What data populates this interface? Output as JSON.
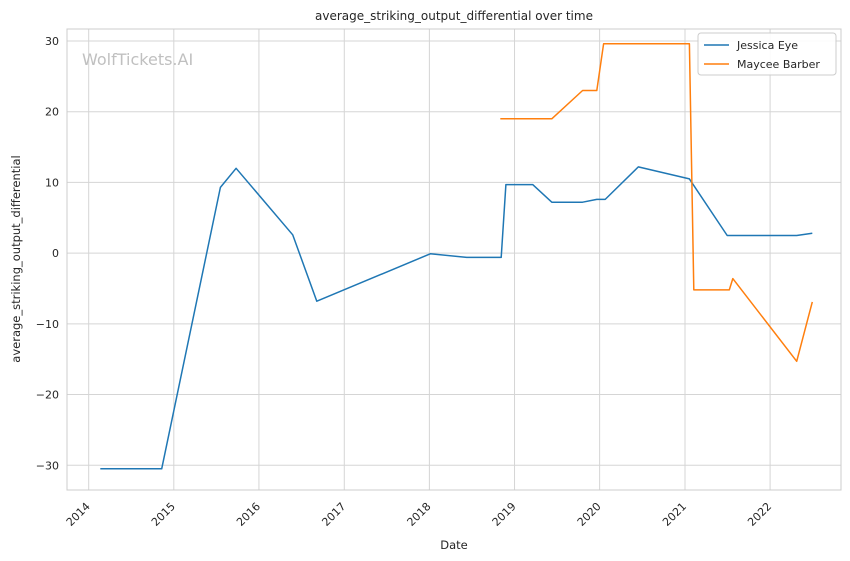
{
  "chart_data": {
    "type": "line",
    "title": "average_striking_output_differential over time",
    "xlabel": "Date",
    "ylabel": "average_striking_output_differential",
    "watermark": "WolfTickets.AI",
    "x_ticks": [
      "2014",
      "2015",
      "2016",
      "2017",
      "2018",
      "2019",
      "2020",
      "2021",
      "2022"
    ],
    "y_ticks": [
      -30,
      -20,
      -10,
      0,
      10,
      20,
      30
    ],
    "xlim": [
      "2013-09-30",
      "2022-11-01"
    ],
    "ylim": [
      -33.5,
      31.7
    ],
    "grid": true,
    "legend_position": "top-right",
    "series": [
      {
        "name": "Jessica Eye",
        "color": "#1f77b4",
        "points": [
          [
            "2014-02-20",
            -30.5
          ],
          [
            "2014-11-10",
            -30.5
          ],
          [
            "2015-07-20",
            9.3
          ],
          [
            "2015-09-25",
            12.0
          ],
          [
            "2016-05-25",
            2.6
          ],
          [
            "2016-09-05",
            -6.8
          ],
          [
            "2018-01-05",
            -0.1
          ],
          [
            "2018-06-10",
            -0.6
          ],
          [
            "2018-11-05",
            -0.6
          ],
          [
            "2018-11-25",
            9.7
          ],
          [
            "2019-03-20",
            9.7
          ],
          [
            "2019-06-10",
            7.2
          ],
          [
            "2019-10-20",
            7.2
          ],
          [
            "2019-12-20",
            7.6
          ],
          [
            "2020-01-25",
            7.6
          ],
          [
            "2020-06-15",
            12.2
          ],
          [
            "2021-01-20",
            10.5
          ],
          [
            "2021-07-01",
            2.5
          ],
          [
            "2022-04-25",
            2.5
          ],
          [
            "2022-07-01",
            2.8
          ]
        ]
      },
      {
        "name": "Maycee Barber",
        "color": "#ff7f0e",
        "points": [
          [
            "2018-11-01",
            19.0
          ],
          [
            "2019-06-10",
            19.0
          ],
          [
            "2019-10-20",
            23.0
          ],
          [
            "2019-12-20",
            23.0
          ],
          [
            "2020-01-18",
            29.6
          ],
          [
            "2021-01-20",
            29.6
          ],
          [
            "2021-02-08",
            -5.2
          ],
          [
            "2021-07-10",
            -5.2
          ],
          [
            "2021-07-25",
            -3.6
          ],
          [
            "2022-04-25",
            -15.3
          ],
          [
            "2022-07-01",
            -6.9
          ]
        ]
      }
    ]
  }
}
